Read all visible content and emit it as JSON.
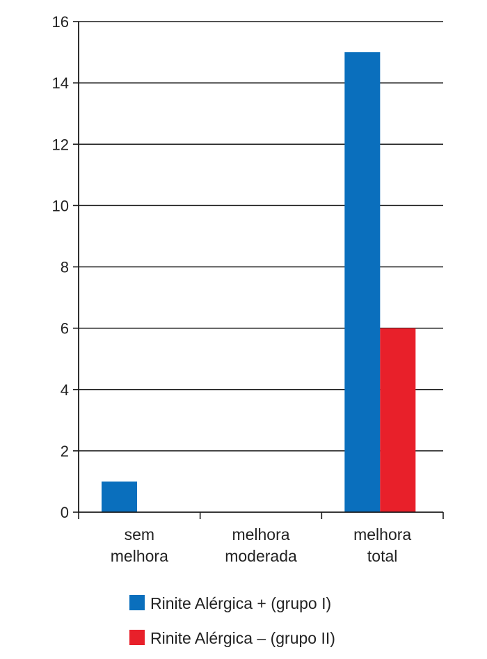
{
  "chart_data": {
    "type": "bar",
    "title": "",
    "xlabel": "",
    "ylabel": "",
    "categories": [
      [
        "sem",
        "melhora"
      ],
      [
        "melhora",
        "moderada"
      ],
      [
        "melhora",
        "total"
      ]
    ],
    "series": [
      {
        "name": "Rinite Alérgica + (grupo I)",
        "color": "#0a6fbd",
        "values": [
          1,
          0,
          15
        ]
      },
      {
        "name": "Rinite Alérgica – (grupo II)",
        "color": "#e8202a",
        "values": [
          0,
          0,
          6
        ]
      }
    ],
    "ylim": [
      0,
      16
    ],
    "yticks": [
      "0",
      "2",
      "4",
      "6",
      "8",
      "10",
      "12",
      "14",
      "16"
    ],
    "grid": true,
    "legend_position": "bottom"
  }
}
